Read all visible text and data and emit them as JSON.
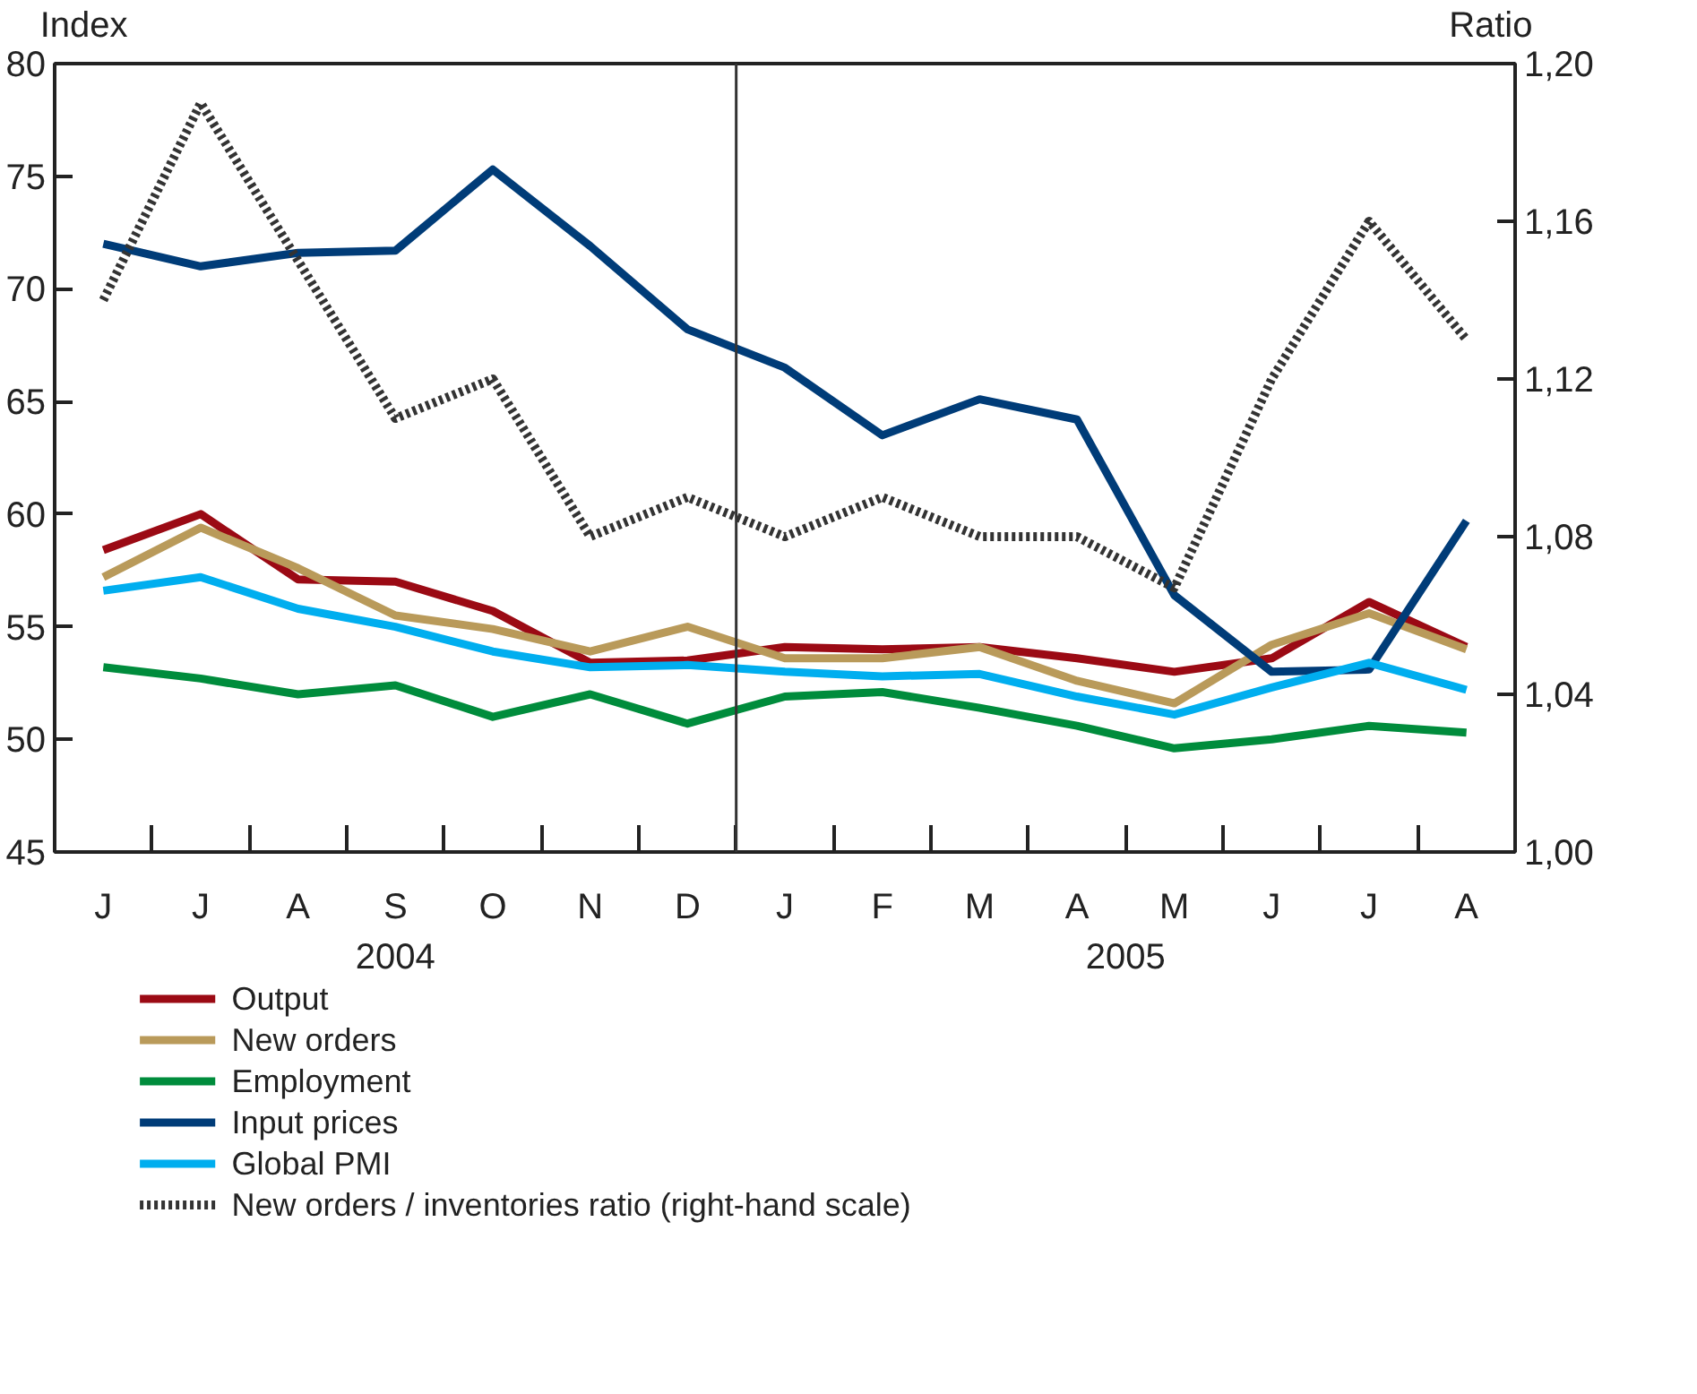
{
  "chart_data": {
    "type": "line",
    "categories": [
      "J",
      "J",
      "A",
      "S",
      "O",
      "N",
      "D",
      "J",
      "F",
      "M",
      "A",
      "M",
      "J",
      "J",
      "A"
    ],
    "ylabel": "Index",
    "y2label": "Ratio",
    "ylim": [
      45,
      80
    ],
    "yticks": [
      45,
      50,
      55,
      60,
      65,
      70,
      75,
      80
    ],
    "y2lim": [
      1.0,
      1.2
    ],
    "y2ticks": [
      {
        "value": 1.0,
        "label": "1,00"
      },
      {
        "value": 1.04,
        "label": "1,04"
      },
      {
        "value": 1.08,
        "label": "1,08"
      },
      {
        "value": 1.12,
        "label": "1,12"
      },
      {
        "value": 1.16,
        "label": "1,16"
      },
      {
        "value": 1.2,
        "label": "1,20"
      }
    ],
    "series": [
      {
        "name": "Output",
        "color": "#9b0a14",
        "values": [
          58.4,
          60,
          57.1,
          57,
          55.7,
          53.4,
          53.5,
          54.1,
          54,
          54.1,
          53.6,
          53,
          53.6,
          56.1,
          54.1
        ]
      },
      {
        "name": "New orders",
        "color": "#b99a5a",
        "values": [
          57.2,
          59.4,
          57.6,
          55.5,
          54.9,
          53.9,
          55,
          53.6,
          53.6,
          54.1,
          52.6,
          51.6,
          54.2,
          55.6,
          54
        ]
      },
      {
        "name": "Employment",
        "color": "#008c3c",
        "values": [
          53.2,
          52.7,
          52,
          52.4,
          51,
          52,
          50.7,
          51.9,
          52.1,
          51.4,
          50.6,
          49.6,
          50,
          50.6,
          50.3
        ]
      },
      {
        "name": "Input prices",
        "color": "#003c78",
        "values": [
          72,
          71,
          71.6,
          71.7,
          75.3,
          71.9,
          68.2,
          66.5,
          63.5,
          65.1,
          64.2,
          56.4,
          53,
          53.1,
          59.7
        ]
      },
      {
        "name": "Global PMI",
        "color": "#00aeef",
        "values": [
          56.6,
          57.2,
          55.8,
          55,
          53.9,
          53.2,
          53.3,
          53,
          52.8,
          52.9,
          51.9,
          51.1,
          52.3,
          53.4,
          52.2
        ]
      },
      {
        "name": "New orders / inventories ratio (right-hand scale)",
        "color": "#333333",
        "axis": "y2",
        "line_style": "dotted",
        "values": [
          1.14,
          1.19,
          1.15,
          1.11,
          1.12,
          1.08,
          1.09,
          1.08,
          1.09,
          1.08,
          1.08,
          1.067,
          1.12,
          1.16,
          1.13
        ]
      }
    ],
    "annotations": [
      "2004",
      "2005"
    ],
    "grid": false,
    "legend": "bottom",
    "line_style": "solid",
    "marker": "none"
  }
}
